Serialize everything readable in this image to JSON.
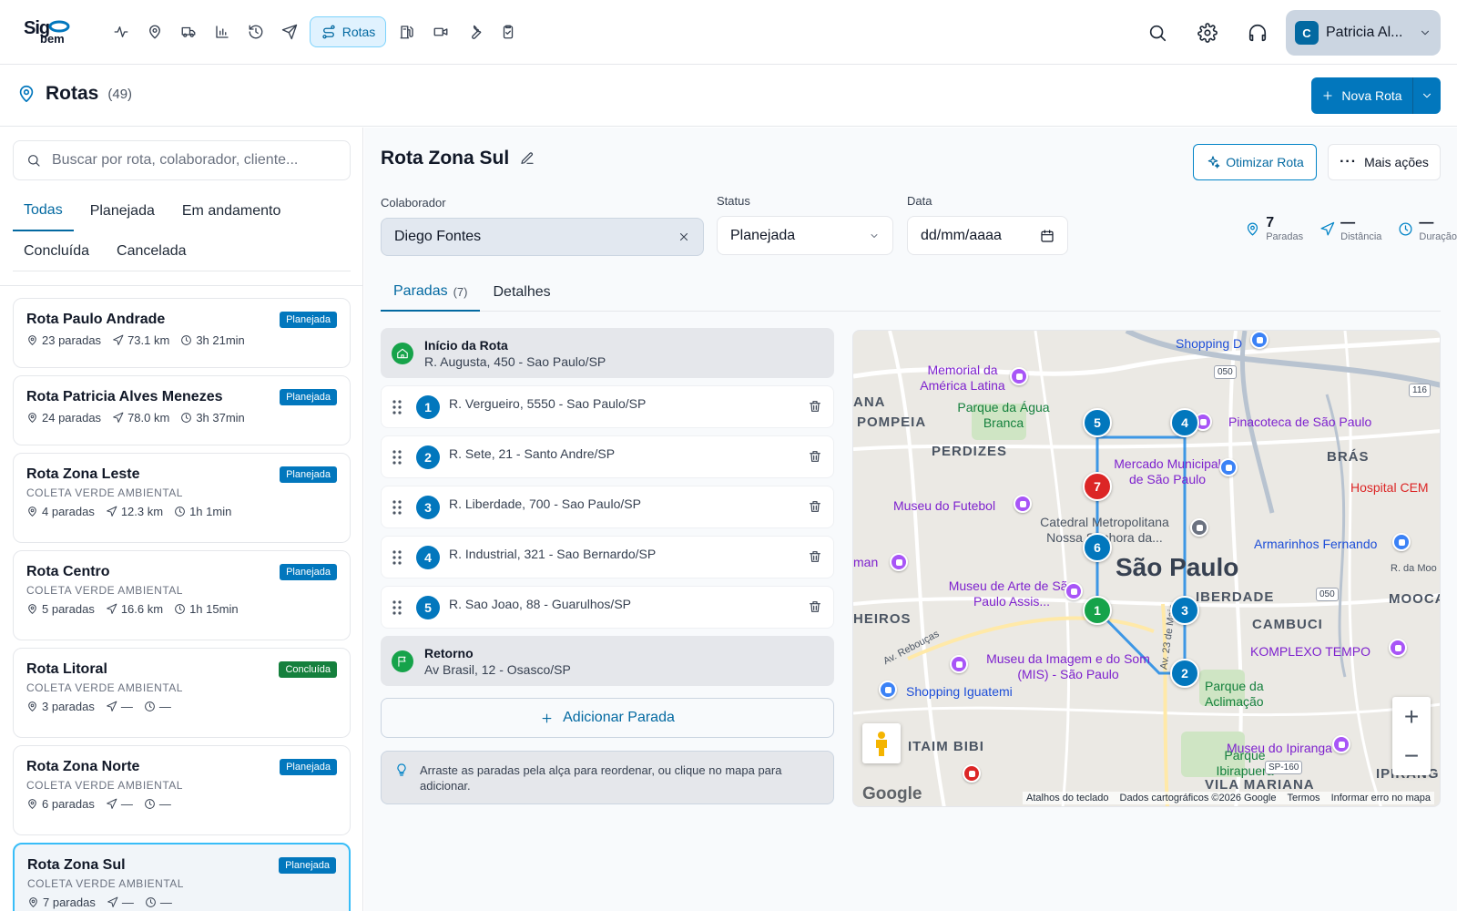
{
  "app": {
    "logo_top": "Sig",
    "logo_bottom": "bem",
    "nav_items": [
      "activity",
      "location",
      "truck",
      "chart",
      "history",
      "send",
      "routes",
      "fuel",
      "video",
      "tools",
      "clipboard"
    ],
    "active_nav_label": "Rotas",
    "user": {
      "initial": "C",
      "name": "Patricia Al..."
    }
  },
  "header": {
    "title": "Rotas",
    "count": "(49)",
    "new_button": "Nova Rota"
  },
  "sidebar": {
    "search_placeholder": "Buscar por rota, colaborador, cliente...",
    "filters": [
      "Todas",
      "Planejada",
      "Em andamento",
      "Concluída",
      "Cancelada"
    ],
    "active_filter": "Todas",
    "routes": [
      {
        "name": "Rota Paulo Andrade",
        "client": "",
        "status": "Planejada",
        "stops": "23 paradas",
        "distance": "73.1 km",
        "duration": "3h 21min"
      },
      {
        "name": "Rota Patricia Alves Menezes",
        "client": "",
        "status": "Planejada",
        "stops": "24 paradas",
        "distance": "78.0 km",
        "duration": "3h 37min"
      },
      {
        "name": "Rota Zona Leste",
        "client": "COLETA VERDE AMBIENTAL",
        "status": "Planejada",
        "stops": "4 paradas",
        "distance": "12.3 km",
        "duration": "1h 1min"
      },
      {
        "name": "Rota Centro",
        "client": "COLETA VERDE AMBIENTAL",
        "status": "Planejada",
        "stops": "5 paradas",
        "distance": "16.6 km",
        "duration": "1h 15min"
      },
      {
        "name": "Rota Litoral",
        "client": "COLETA VERDE AMBIENTAL",
        "status": "Concluída",
        "stops": "3 paradas",
        "distance": "—",
        "duration": "—"
      },
      {
        "name": "Rota Zona Norte",
        "client": "COLETA VERDE AMBIENTAL",
        "status": "Planejada",
        "stops": "6 paradas",
        "distance": "—",
        "duration": "—"
      },
      {
        "name": "Rota Zona Sul",
        "client": "COLETA VERDE AMBIENTAL",
        "status": "Planejada",
        "stops": "7 paradas",
        "distance": "—",
        "duration": "—"
      }
    ]
  },
  "route": {
    "title": "Rota Zona Sul",
    "optimize_button": "Otimizar Rota",
    "more_button": "Mais ações",
    "collaborator_label": "Colaborador",
    "collaborator": "Diego Fontes",
    "status_label": "Status",
    "status": "Planejada",
    "date_label": "Data",
    "date_placeholder": "dd/mm/aaaa",
    "stats": [
      {
        "value": "7",
        "label": "Paradas"
      },
      {
        "value": "—",
        "label": "Distância"
      },
      {
        "value": "—",
        "label": "Duração"
      }
    ],
    "tabs": [
      {
        "label": "Paradas",
        "count": "(7)"
      },
      {
        "label": "Detalhes",
        "count": ""
      }
    ],
    "start": {
      "title": "Início da Rota",
      "address": "R. Augusta, 450 - Sao Paulo/SP"
    },
    "stops": [
      {
        "num": "1",
        "address": "R. Vergueiro, 5550 - Sao Paulo/SP"
      },
      {
        "num": "2",
        "address": "R. Sete, 21 - Santo Andre/SP"
      },
      {
        "num": "3",
        "address": "R. Liberdade, 700 - Sao Paulo/SP"
      },
      {
        "num": "4",
        "address": "R. Industrial, 321 - Sao Bernardo/SP"
      },
      {
        "num": "5",
        "address": "R. Sao Joao, 88 - Guarulhos/SP"
      }
    ],
    "end": {
      "title": "Retorno",
      "address": "Av Brasil, 12 - Osasco/SP"
    },
    "add_stop": "Adicionar Parada",
    "hint": "Arraste as paradas pela alça para reordenar, ou clique no mapa para adicionar."
  },
  "map": {
    "city": "São Paulo",
    "districts": [
      "ANA",
      "POMPEIA",
      "PERDIZES",
      "BRÁS",
      "HEIROS",
      "MOOCA",
      "CAMBUCI",
      "ITAIM BIBI",
      "VILA MARIANA",
      "IPIRANGA",
      "IBERDADE"
    ],
    "pois": [
      "Memorial da América Latina",
      "Parque da Água Branca",
      "Shopping D",
      "Pinacoteca de São Paulo",
      "Mercado Municipal de São Paulo",
      "Museu do Futebol",
      "Catedral Metropolitana Nossa Senhora da...",
      "Armarinhos Fernando",
      "Museu de Arte de São Paulo Assis...",
      "Museu da Imagem e do Som (MIS) - São Paulo",
      "Shopping Iguatemi",
      "Parque da Aclimação",
      "Museu do Ipiranga",
      "KOMPLEXO TEMPO",
      "Parque Ibirapuera",
      "Hospital CEM",
      "man",
      "R. da Moo",
      "Av. Rebouças",
      "Av. 23 de Maio"
    ],
    "shields": [
      "050",
      "116",
      "050",
      "SP-160"
    ],
    "markers": [
      "5",
      "4",
      "7",
      "6",
      "1",
      "3",
      "2"
    ],
    "google": "Google",
    "attribution": [
      "Atalhos do teclado",
      "Dados cartográficos ©2026 Google",
      "Termos",
      "Informar erro no mapa"
    ],
    "zoom_in": "+",
    "zoom_out": "−"
  }
}
